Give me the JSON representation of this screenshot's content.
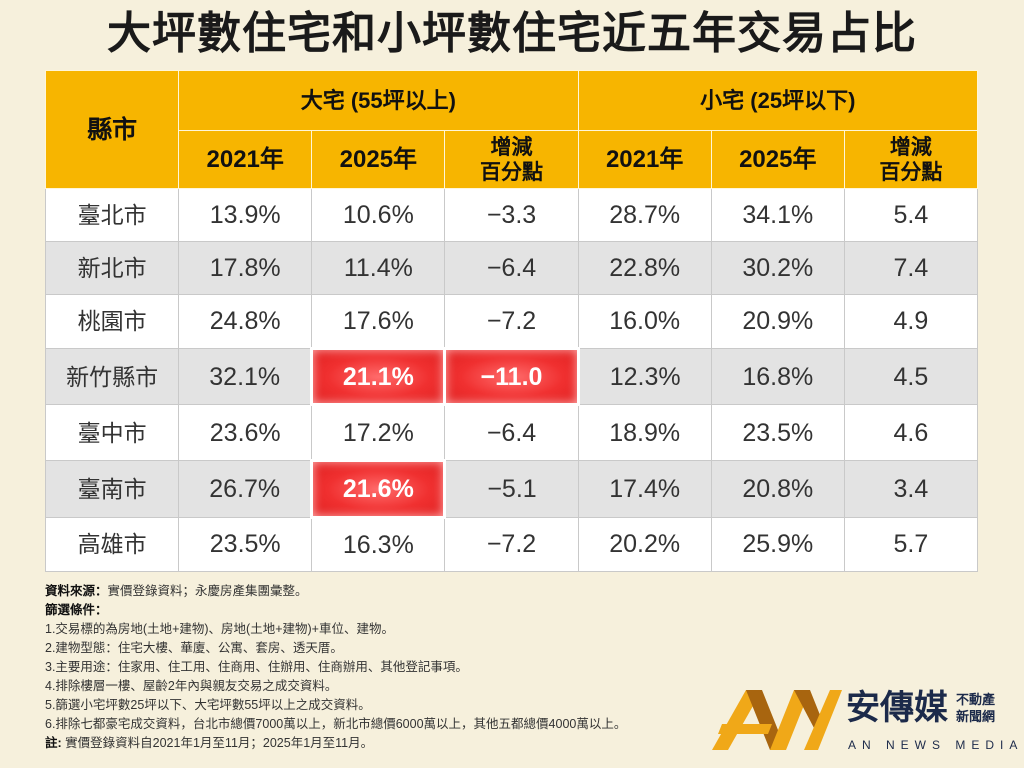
{
  "title": "大坪數住宅和小坪數住宅近五年交易占比",
  "chart_data": {
    "type": "table",
    "title": "大坪數住宅和小坪數住宅近五年交易占比",
    "header": {
      "county": "縣市",
      "large_group": "大宅 (55坪以上)",
      "small_group": "小宅 (25坪以下)",
      "y2021": "2021年",
      "y2025": "2025年",
      "change": "增減 百分點"
    },
    "rows": [
      {
        "city": "臺北市",
        "l2021": "13.9%",
        "l2025": "10.6%",
        "lchg": "−3.3",
        "s2021": "28.7%",
        "s2025": "34.1%",
        "schg": "5.4"
      },
      {
        "city": "新北市",
        "l2021": "17.8%",
        "l2025": "11.4%",
        "lchg": "−6.4",
        "s2021": "22.8%",
        "s2025": "30.2%",
        "schg": "7.4"
      },
      {
        "city": "桃園市",
        "l2021": "24.8%",
        "l2025": "17.6%",
        "lchg": "−7.2",
        "s2021": "16.0%",
        "s2025": "20.9%",
        "schg": "4.9"
      },
      {
        "city": "新竹縣市",
        "l2021": "32.1%",
        "l2025": "21.1%",
        "lchg": "−11.0",
        "s2021": "12.3%",
        "s2025": "16.8%",
        "schg": "4.5"
      },
      {
        "city": "臺中市",
        "l2021": "23.6%",
        "l2025": "17.2%",
        "lchg": "−6.4",
        "s2021": "18.9%",
        "s2025": "23.5%",
        "schg": "4.6"
      },
      {
        "city": "臺南市",
        "l2021": "26.7%",
        "l2025": "21.6%",
        "lchg": "−5.1",
        "s2021": "17.4%",
        "s2025": "20.8%",
        "schg": "3.4"
      },
      {
        "city": "高雄市",
        "l2021": "23.5%",
        "l2025": "16.3%",
        "lchg": "−7.2",
        "s2021": "20.2%",
        "s2025": "25.9%",
        "schg": "5.7"
      }
    ],
    "highlighted": [
      {
        "row": 3,
        "col": "l2025"
      },
      {
        "row": 3,
        "col": "lchg"
      },
      {
        "row": 5,
        "col": "l2025"
      }
    ],
    "colors": {
      "header": "#f7b500",
      "highlight": "#f03030",
      "row_alt": "#e3e3e3",
      "background": "#f6f0dc"
    }
  },
  "notes": {
    "source_label": "資料來源：",
    "source": "實價登錄資料；永慶房產集團彙整。",
    "filter_label": "篩選條件：",
    "items": [
      "1.交易標的為房地(土地+建物)、房地(土地+建物)+車位、建物。",
      "2.建物型態：住宅大樓、華廈、公寓、套房、透天厝。",
      "3.主要用途：住家用、住工用、住商用、住辦用、住商辦用、其他登記事項。",
      "4.排除樓層一樓、屋齡2年內與親友交易之成交資料。",
      "5.篩選小宅坪數25坪以下、大宅坪數55坪以上之成交資料。",
      "6.排除七都豪宅成交資料，台北市總價7000萬以上，新北市總價6000萬以上，其他五都總價4000萬以上。"
    ],
    "remark_label": "註:",
    "remark": "實價登錄資料自2021年1月至11月；2025年1月至11月。"
  },
  "logo": {
    "cn": "安傳媒",
    "sub1": "不動產",
    "sub2": "新聞網",
    "en": "AN NEWS MEDIA"
  }
}
